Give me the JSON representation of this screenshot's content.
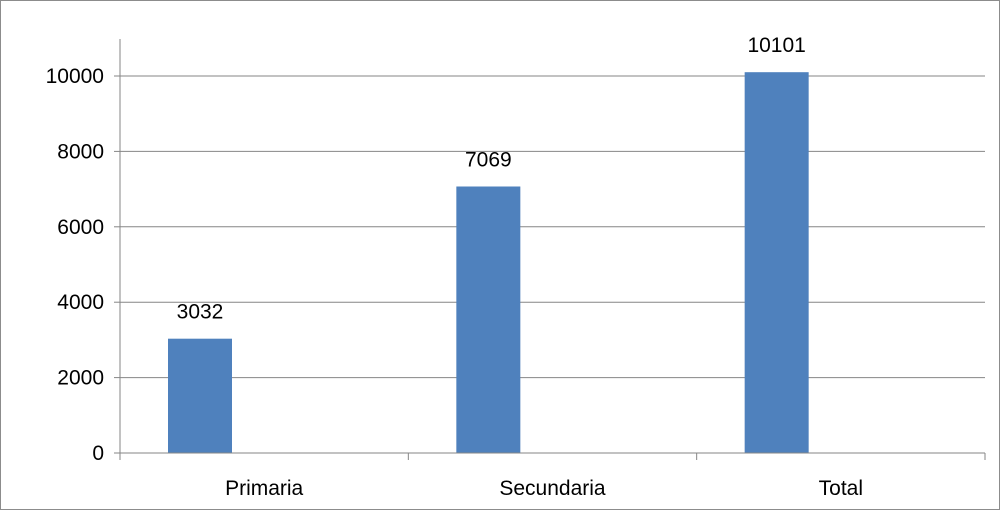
{
  "chart_data": {
    "type": "bar",
    "title": "",
    "xlabel": "",
    "ylabel": "",
    "categories": [
      "Primaria",
      "Secundaria",
      "Total"
    ],
    "series": [
      {
        "values": [
          3032,
          7069,
          10101
        ],
        "color": "#4f81bd"
      }
    ],
    "data_labels": [
      "3032",
      "7069",
      "10101"
    ],
    "ylim": [
      0,
      10000
    ],
    "yticks": [
      "0",
      "2000",
      "4000",
      "6000",
      "8000",
      "10000"
    ],
    "grid": true,
    "legend": "none"
  }
}
